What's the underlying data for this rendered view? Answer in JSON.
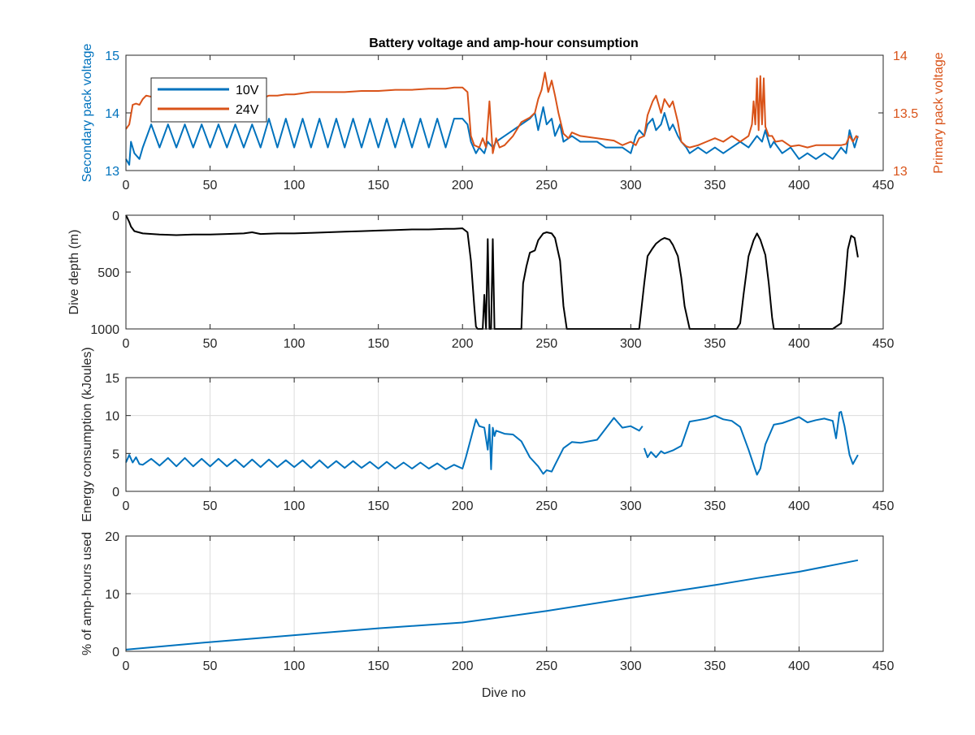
{
  "chart_data": [
    {
      "type": "line",
      "title": "Battery voltage and amp-hour consumption",
      "xlabel": "",
      "xlim": [
        0,
        450
      ],
      "xticks": [
        "0",
        "50",
        "100",
        "150",
        "200",
        "250",
        "300",
        "350",
        "400",
        "450"
      ],
      "ylabel": "Secondary pack voltage",
      "ylim": [
        13,
        15
      ],
      "yticks": [
        "13",
        "14",
        "15"
      ],
      "ylabel_right": "Primary pack voltage",
      "ylim_right": [
        13,
        14
      ],
      "yticks_right": [
        "13",
        "13.5",
        "14"
      ],
      "grid": false,
      "legend_position": "top-left",
      "series": [
        {
          "name": "10V",
          "axis": "left",
          "color": "#0072BD",
          "x": [
            0,
            2,
            3,
            5,
            8,
            10,
            15,
            20,
            25,
            30,
            35,
            40,
            45,
            50,
            55,
            60,
            65,
            70,
            75,
            80,
            85,
            90,
            95,
            100,
            105,
            110,
            115,
            120,
            125,
            130,
            135,
            140,
            145,
            150,
            155,
            160,
            165,
            170,
            175,
            180,
            185,
            190,
            195,
            200,
            203,
            205,
            208,
            210,
            213,
            215,
            218,
            220,
            225,
            230,
            235,
            240,
            243,
            245,
            248,
            250,
            253,
            255,
            258,
            260,
            265,
            270,
            275,
            280,
            285,
            290,
            295,
            300,
            303,
            305,
            308,
            310,
            313,
            315,
            318,
            320,
            323,
            325,
            328,
            330,
            333,
            335,
            340,
            345,
            350,
            355,
            360,
            365,
            370,
            375,
            378,
            380,
            383,
            385,
            390,
            395,
            400,
            405,
            410,
            415,
            420,
            425,
            428,
            430,
            433,
            435
          ],
          "y": [
            13.2,
            13.1,
            13.5,
            13.3,
            13.2,
            13.4,
            13.8,
            13.4,
            13.8,
            13.4,
            13.8,
            13.4,
            13.8,
            13.4,
            13.8,
            13.4,
            13.8,
            13.4,
            13.8,
            13.4,
            13.9,
            13.4,
            13.9,
            13.4,
            13.9,
            13.4,
            13.9,
            13.4,
            13.9,
            13.4,
            13.9,
            13.4,
            13.9,
            13.4,
            13.9,
            13.4,
            13.9,
            13.4,
            13.9,
            13.4,
            13.9,
            13.4,
            13.9,
            13.9,
            13.8,
            13.5,
            13.3,
            13.4,
            13.3,
            13.5,
            13.4,
            13.5,
            13.6,
            13.7,
            13.8,
            13.9,
            14.0,
            13.7,
            14.1,
            13.8,
            13.9,
            13.6,
            13.8,
            13.5,
            13.6,
            13.5,
            13.5,
            13.5,
            13.4,
            13.4,
            13.4,
            13.3,
            13.6,
            13.7,
            13.6,
            13.8,
            13.9,
            13.7,
            13.8,
            14.0,
            13.7,
            13.8,
            13.6,
            13.5,
            13.4,
            13.3,
            13.4,
            13.3,
            13.4,
            13.3,
            13.4,
            13.5,
            13.4,
            13.6,
            13.5,
            13.7,
            13.4,
            13.5,
            13.3,
            13.4,
            13.2,
            13.3,
            13.2,
            13.3,
            13.2,
            13.4,
            13.3,
            13.7,
            13.4,
            13.6
          ]
        },
        {
          "name": "24V",
          "axis": "right",
          "color": "#D95319",
          "x": [
            0,
            2,
            4,
            6,
            8,
            10,
            12,
            15,
            20,
            30,
            40,
            50,
            60,
            70,
            75,
            80,
            85,
            90,
            95,
            100,
            110,
            120,
            130,
            140,
            150,
            160,
            170,
            180,
            190,
            195,
            200,
            203,
            205,
            207,
            210,
            212,
            214,
            216,
            218,
            220,
            222,
            225,
            230,
            235,
            240,
            243,
            245,
            247,
            249,
            251,
            253,
            255,
            257,
            259,
            260,
            263,
            265,
            270,
            280,
            290,
            295,
            300,
            303,
            305,
            308,
            310,
            313,
            315,
            318,
            320,
            323,
            325,
            328,
            330,
            333,
            335,
            340,
            345,
            350,
            355,
            360,
            365,
            370,
            372,
            373,
            374,
            375,
            376,
            377,
            378,
            379,
            380,
            382,
            384,
            386,
            390,
            395,
            400,
            405,
            410,
            415,
            420,
            425,
            428,
            430,
            432,
            434,
            435
          ],
          "y": [
            13.36,
            13.4,
            13.57,
            13.58,
            13.57,
            13.62,
            13.65,
            13.64,
            13.66,
            13.66,
            13.66,
            13.65,
            13.64,
            13.65,
            13.63,
            13.62,
            13.65,
            13.65,
            13.66,
            13.66,
            13.68,
            13.68,
            13.68,
            13.69,
            13.69,
            13.7,
            13.7,
            13.71,
            13.71,
            13.72,
            13.72,
            13.68,
            13.3,
            13.22,
            13.2,
            13.28,
            13.2,
            13.6,
            13.15,
            13.28,
            13.2,
            13.22,
            13.3,
            13.42,
            13.46,
            13.5,
            13.62,
            13.7,
            13.85,
            13.68,
            13.78,
            13.65,
            13.5,
            13.38,
            13.32,
            13.28,
            13.33,
            13.3,
            13.28,
            13.26,
            13.22,
            13.25,
            13.22,
            13.28,
            13.3,
            13.48,
            13.6,
            13.65,
            13.5,
            13.62,
            13.55,
            13.6,
            13.42,
            13.25,
            13.21,
            13.2,
            13.22,
            13.25,
            13.28,
            13.25,
            13.3,
            13.25,
            13.3,
            13.4,
            13.6,
            13.4,
            13.8,
            13.35,
            13.82,
            13.4,
            13.8,
            13.38,
            13.3,
            13.3,
            13.25,
            13.26,
            13.21,
            13.22,
            13.2,
            13.22,
            13.22,
            13.22,
            13.22,
            13.23,
            13.3,
            13.25,
            13.3,
            13.28
          ]
        }
      ]
    },
    {
      "type": "line",
      "title": "",
      "xlabel": "",
      "xlim": [
        0,
        450
      ],
      "xticks": [
        "0",
        "50",
        "100",
        "150",
        "200",
        "250",
        "300",
        "350",
        "400",
        "450"
      ],
      "ylabel": "Dive depth (m)",
      "ylim": [
        0,
        1000
      ],
      "y_reversed": true,
      "yticks": [
        "0",
        "500",
        "1000"
      ],
      "grid": false,
      "series": [
        {
          "color": "#000000",
          "x": [
            0,
            1,
            2,
            3,
            5,
            10,
            20,
            30,
            40,
            50,
            60,
            70,
            75,
            80,
            90,
            100,
            110,
            120,
            130,
            140,
            150,
            160,
            170,
            180,
            190,
            195,
            200,
            203,
            205,
            207,
            208,
            209,
            210,
            212,
            213,
            214,
            215,
            216,
            217,
            218,
            219,
            220,
            230,
            235,
            236,
            238,
            240,
            243,
            245,
            248,
            250,
            253,
            255,
            258,
            260,
            262,
            265,
            270,
            280,
            290,
            300,
            303,
            305,
            308,
            310,
            313,
            315,
            318,
            320,
            323,
            325,
            328,
            330,
            332,
            335,
            340,
            350,
            360,
            363,
            365,
            367,
            370,
            373,
            375,
            377,
            380,
            382,
            384,
            385,
            390,
            400,
            410,
            420,
            425,
            427,
            429,
            431,
            433,
            435
          ],
          "y": [
            0,
            30,
            60,
            100,
            140,
            160,
            170,
            175,
            170,
            170,
            165,
            160,
            150,
            165,
            160,
            160,
            155,
            150,
            145,
            140,
            135,
            130,
            125,
            125,
            120,
            120,
            115,
            150,
            400,
            800,
            980,
            1000,
            1000,
            1000,
            700,
            1000,
            210,
            1000,
            1000,
            210,
            1000,
            1000,
            1000,
            1000,
            600,
            450,
            330,
            310,
            220,
            160,
            150,
            160,
            200,
            400,
            800,
            1000,
            1000,
            1000,
            1000,
            1000,
            1000,
            1000,
            1000,
            600,
            360,
            290,
            250,
            215,
            200,
            215,
            260,
            360,
            550,
            800,
            1000,
            1000,
            1000,
            1000,
            1000,
            950,
            700,
            360,
            220,
            160,
            215,
            350,
            600,
            900,
            1000,
            1000,
            1000,
            1000,
            1000,
            950,
            650,
            300,
            180,
            200,
            370
          ]
        }
      ]
    },
    {
      "type": "line",
      "title": "",
      "xlabel": "",
      "xlim": [
        0,
        450
      ],
      "xticks": [
        "0",
        "50",
        "100",
        "150",
        "200",
        "250",
        "300",
        "350",
        "400",
        "450"
      ],
      "ylabel": "Energy consumption (kJoules)",
      "ylim": [
        0,
        15
      ],
      "yticks": [
        "0",
        "5",
        "10",
        "15"
      ],
      "grid": true,
      "series": [
        {
          "color": "#0072BD",
          "segments": [
            {
              "x": [
                0,
                2,
                4,
                6,
                8,
                10,
                15,
                20,
                25,
                30,
                35,
                40,
                45,
                50,
                55,
                60,
                65,
                70,
                75,
                80,
                85,
                90,
                95,
                100,
                105,
                110,
                115,
                120,
                125,
                130,
                135,
                140,
                145,
                150,
                155,
                160,
                165,
                170,
                175,
                180,
                185,
                190,
                195,
                200,
                202,
                205,
                208,
                210,
                213,
                215,
                216,
                217,
                218,
                219,
                220,
                225,
                230,
                235,
                240,
                245,
                248,
                250,
                253,
                255,
                260,
                265,
                270,
                280,
                290,
                295,
                300,
                305,
                307
              ],
              "y": [
                3.8,
                4.8,
                3.8,
                4.5,
                3.6,
                3.5,
                4.3,
                3.4,
                4.4,
                3.3,
                4.4,
                3.3,
                4.3,
                3.3,
                4.3,
                3.3,
                4.2,
                3.2,
                4.2,
                3.2,
                4.2,
                3.2,
                4.1,
                3.2,
                4.1,
                3.1,
                4.1,
                3.1,
                4.0,
                3.1,
                4.0,
                3.1,
                3.9,
                3.0,
                3.9,
                3.0,
                3.8,
                3.0,
                3.8,
                3.0,
                3.7,
                2.9,
                3.5,
                3.0,
                4.5,
                7.0,
                9.5,
                8.6,
                8.4,
                5.5,
                8.8,
                2.9,
                8.4,
                7.3,
                8.0,
                7.6,
                7.5,
                6.6,
                4.5,
                3.3,
                2.3,
                2.8,
                2.6,
                3.5,
                5.7,
                6.5,
                6.4,
                6.8,
                9.7,
                8.4,
                8.6,
                8.0,
                8.6
              ]
            },
            {
              "x": [
                308,
                310,
                312,
                315,
                318,
                320,
                325,
                330,
                335,
                340,
                345,
                350,
                355,
                360,
                365,
                370,
                373,
                375,
                377,
                380,
                385,
                390,
                395,
                400,
                405,
                410,
                415,
                420,
                422,
                424,
                425,
                427,
                430,
                432,
                435
              ],
              "y": [
                5.7,
                4.5,
                5.2,
                4.5,
                5.3,
                5.0,
                5.4,
                6.0,
                9.2,
                9.4,
                9.6,
                10.0,
                9.5,
                9.3,
                8.5,
                5.5,
                3.5,
                2.2,
                3.0,
                6.2,
                8.8,
                9.0,
                9.4,
                9.8,
                9.1,
                9.4,
                9.6,
                9.3,
                7.0,
                10.4,
                10.5,
                8.6,
                4.8,
                3.6,
                4.8
              ]
            }
          ]
        }
      ]
    },
    {
      "type": "line",
      "title": "",
      "xlabel": "Dive no",
      "xlim": [
        0,
        450
      ],
      "xticks": [
        "0",
        "50",
        "100",
        "150",
        "200",
        "250",
        "300",
        "350",
        "400",
        "450"
      ],
      "ylabel": "% of amp-hours used",
      "ylim": [
        0,
        20
      ],
      "yticks": [
        "0",
        "10",
        "20"
      ],
      "grid": true,
      "series": [
        {
          "color": "#0072BD",
          "x": [
            0,
            50,
            100,
            150,
            200,
            250,
            300,
            350,
            375,
            400,
            435
          ],
          "y": [
            0.3,
            1.6,
            2.8,
            4.0,
            5.0,
            7.0,
            9.3,
            11.5,
            12.7,
            13.8,
            15.8
          ]
        }
      ]
    }
  ]
}
